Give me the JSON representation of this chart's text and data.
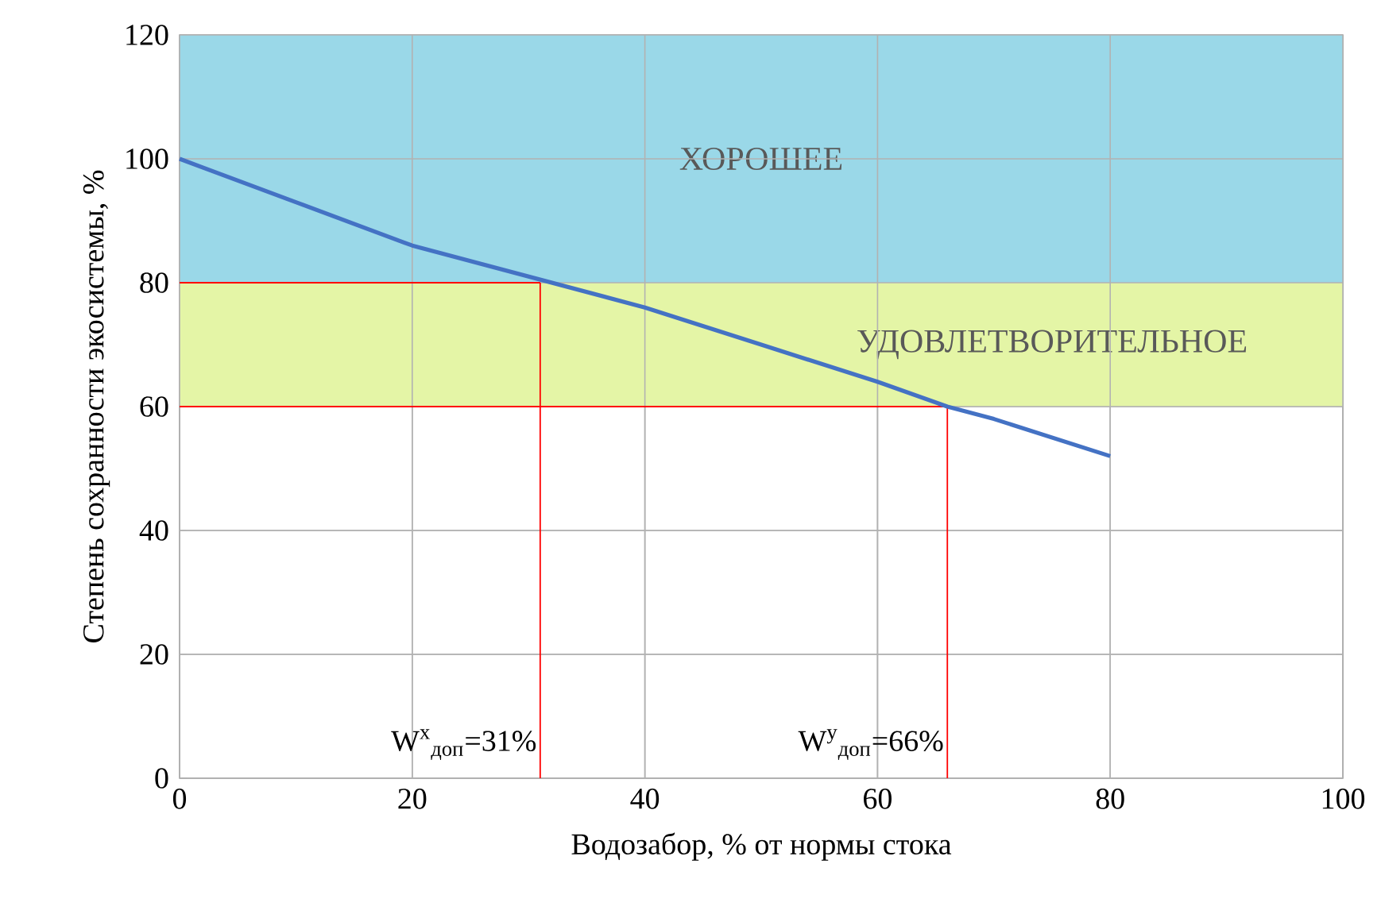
{
  "chart_data": {
    "type": "line",
    "xlabel": "Водозабор, % от нормы стока",
    "ylabel": "Степень сохранности экосистемы, %",
    "x": [
      0,
      10,
      20,
      30,
      40,
      50,
      60,
      66,
      70,
      80
    ],
    "series": [
      {
        "color": "#4472c4",
        "values": [
          100,
          93,
          86,
          81,
          76,
          70,
          64,
          60,
          58,
          52
        ]
      }
    ],
    "xlim": [
      0,
      100
    ],
    "ylim": [
      0,
      120
    ],
    "xticks": [
      0,
      20,
      40,
      60,
      80,
      100
    ],
    "yticks": [
      0,
      20,
      40,
      60,
      80,
      100,
      120
    ],
    "grid": true,
    "marker": "none",
    "line_style": "solid",
    "bands": [
      {
        "axis": "y",
        "from": 80,
        "to": 120,
        "label": "ХОРОШЕЕ",
        "color": "#9ad8e8"
      },
      {
        "axis": "y",
        "from": 60,
        "to": 80,
        "label": "УДОВЛЕТВОРИТЕЛЬНОЕ",
        "color": "#e4f5a6"
      }
    ],
    "ref_lines": [
      {
        "axis": "x",
        "value": 31,
        "label": "W$^{x}$$_{доп}$=31%",
        "color": "#ff0000"
      },
      {
        "axis": "y",
        "value": 80,
        "color": "#ff0000"
      },
      {
        "axis": "x",
        "value": 66,
        "label": "W$^{y}$$_{доп}$=66%",
        "color": "#ff0000"
      },
      {
        "axis": "y",
        "value": 60,
        "color": "#ff0000"
      }
    ]
  }
}
